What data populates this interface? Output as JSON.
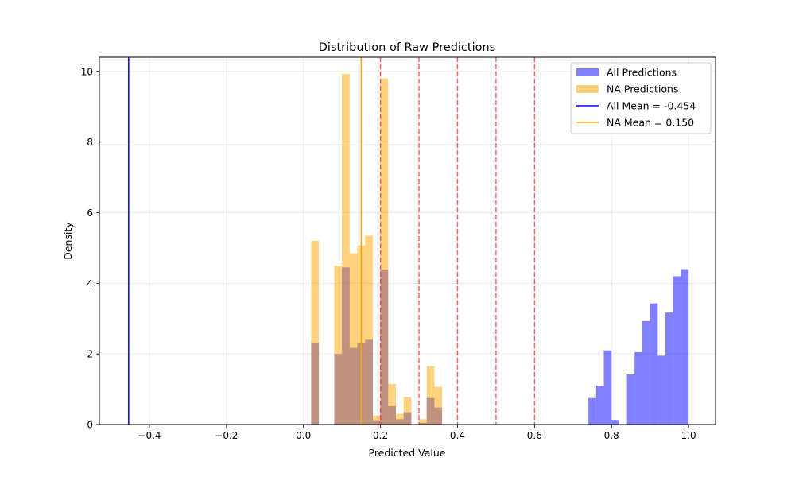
{
  "chart_data": {
    "type": "histogram",
    "title": "Distribution of Raw Predictions",
    "xlabel": "Predicted Value",
    "ylabel": "Density",
    "xlim": [
      -0.53,
      1.07
    ],
    "ylim": [
      0,
      10.4
    ],
    "xticks": [
      -0.4,
      -0.2,
      0.0,
      0.2,
      0.4,
      0.6,
      0.8,
      1.0
    ],
    "xtick_labels": [
      "−0.4",
      "−0.2",
      "0.0",
      "0.2",
      "0.4",
      "0.6",
      "0.8",
      "1.0"
    ],
    "yticks": [
      0,
      2,
      4,
      6,
      8,
      10
    ],
    "ytick_labels": [
      "0",
      "2",
      "4",
      "6",
      "8",
      "10"
    ],
    "grid": true,
    "legend_position": "top-right",
    "series": [
      {
        "name": "All Predictions",
        "color": "#0000ff",
        "opacity": 0.5,
        "bins": [
          {
            "x0": 0.02,
            "x1": 0.04,
            "y": 2.32
          },
          {
            "x0": 0.08,
            "x1": 0.1,
            "y": 2.0
          },
          {
            "x0": 0.1,
            "x1": 0.12,
            "y": 4.45
          },
          {
            "x0": 0.12,
            "x1": 0.14,
            "y": 2.17
          },
          {
            "x0": 0.14,
            "x1": 0.16,
            "y": 2.3
          },
          {
            "x0": 0.16,
            "x1": 0.18,
            "y": 2.4
          },
          {
            "x0": 0.18,
            "x1": 0.2,
            "y": 0.12
          },
          {
            "x0": 0.2,
            "x1": 0.22,
            "y": 4.37
          },
          {
            "x0": 0.22,
            "x1": 0.24,
            "y": 0.52
          },
          {
            "x0": 0.24,
            "x1": 0.26,
            "y": 0.15
          },
          {
            "x0": 0.26,
            "x1": 0.28,
            "y": 0.35
          },
          {
            "x0": 0.3,
            "x1": 0.32,
            "y": 0.05
          },
          {
            "x0": 0.32,
            "x1": 0.34,
            "y": 0.75
          },
          {
            "x0": 0.34,
            "x1": 0.36,
            "y": 0.48
          },
          {
            "x0": 0.74,
            "x1": 0.76,
            "y": 0.75
          },
          {
            "x0": 0.76,
            "x1": 0.78,
            "y": 1.1
          },
          {
            "x0": 0.78,
            "x1": 0.8,
            "y": 2.1
          },
          {
            "x0": 0.8,
            "x1": 0.82,
            "y": 0.13
          },
          {
            "x0": 0.84,
            "x1": 0.86,
            "y": 1.42
          },
          {
            "x0": 0.86,
            "x1": 0.88,
            "y": 2.05
          },
          {
            "x0": 0.88,
            "x1": 0.9,
            "y": 2.93
          },
          {
            "x0": 0.9,
            "x1": 0.92,
            "y": 3.43
          },
          {
            "x0": 0.92,
            "x1": 0.94,
            "y": 1.95
          },
          {
            "x0": 0.94,
            "x1": 0.96,
            "y": 3.17
          },
          {
            "x0": 0.96,
            "x1": 0.98,
            "y": 4.2
          },
          {
            "x0": 0.98,
            "x1": 1.0,
            "y": 4.4
          }
        ]
      },
      {
        "name": "NA Predictions",
        "color": "#ffa500",
        "opacity": 0.5,
        "bins": [
          {
            "x0": 0.02,
            "x1": 0.04,
            "y": 5.2
          },
          {
            "x0": 0.08,
            "x1": 0.1,
            "y": 4.5
          },
          {
            "x0": 0.1,
            "x1": 0.12,
            "y": 9.93
          },
          {
            "x0": 0.12,
            "x1": 0.14,
            "y": 4.85
          },
          {
            "x0": 0.14,
            "x1": 0.16,
            "y": 5.08
          },
          {
            "x0": 0.16,
            "x1": 0.18,
            "y": 5.35
          },
          {
            "x0": 0.18,
            "x1": 0.2,
            "y": 0.25
          },
          {
            "x0": 0.2,
            "x1": 0.22,
            "y": 9.8
          },
          {
            "x0": 0.22,
            "x1": 0.24,
            "y": 1.15
          },
          {
            "x0": 0.24,
            "x1": 0.26,
            "y": 0.3
          },
          {
            "x0": 0.26,
            "x1": 0.28,
            "y": 0.78
          },
          {
            "x0": 0.3,
            "x1": 0.32,
            "y": 0.15
          },
          {
            "x0": 0.32,
            "x1": 0.34,
            "y": 1.65
          },
          {
            "x0": 0.34,
            "x1": 0.36,
            "y": 1.07
          }
        ]
      }
    ],
    "mean_lines": [
      {
        "name": "All Mean = -0.454",
        "x": -0.454,
        "color": "#0000ff"
      },
      {
        "name": "NA Mean = 0.150",
        "x": 0.15,
        "color": "#ffa500"
      }
    ],
    "threshold_lines": {
      "color": "#ff0000",
      "opacity": 0.6,
      "style": "dashed",
      "x": [
        0.2,
        0.3,
        0.4,
        0.5,
        0.6
      ]
    }
  }
}
